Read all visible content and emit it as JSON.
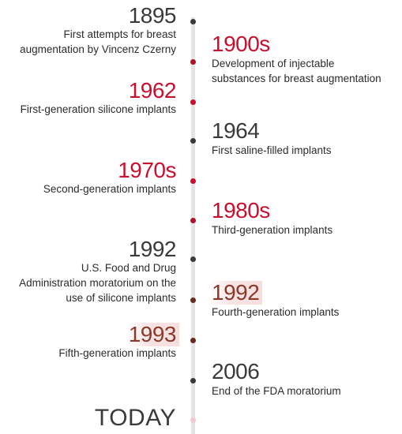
{
  "colors": {
    "dark": "#3a3a3a",
    "red": "#c8102e",
    "brown": "#8a3a2a",
    "axis": "#e4e4e4"
  },
  "events": [
    {
      "year": "1895",
      "lines": [
        "First attempts for breast",
        "augmentation by Vincenz Czerny"
      ],
      "side": "left",
      "color": "dark"
    },
    {
      "year": "1900s",
      "lines": [
        "Development of injectable",
        "substances for breast augmentation"
      ],
      "side": "right",
      "color": "red"
    },
    {
      "year": "1962",
      "lines": [
        "First-generation silicone implants"
      ],
      "side": "left",
      "color": "red"
    },
    {
      "year": "1964",
      "lines": [
        "First saline-filled implants"
      ],
      "side": "right",
      "color": "dark"
    },
    {
      "year": "1970s",
      "lines": [
        "Second-generation implants"
      ],
      "side": "left",
      "color": "red"
    },
    {
      "year": "1980s",
      "lines": [
        "Third-generation implants"
      ],
      "side": "right",
      "color": "red"
    },
    {
      "year": "1992",
      "lines": [
        "U.S. Food and Drug",
        "Administration moratorium on the",
        "use of silicone implants"
      ],
      "side": "left",
      "color": "dark"
    },
    {
      "year": "1992",
      "lines": [
        "Fourth-generation implants"
      ],
      "side": "right",
      "color": "brown"
    },
    {
      "year": "1993",
      "lines": [
        "Fifth-generation implants"
      ],
      "side": "left",
      "color": "brown"
    },
    {
      "year": "2006",
      "lines": [
        "End of the FDA moratorium"
      ],
      "side": "right",
      "color": "dark"
    }
  ],
  "today_label": "TODAY"
}
